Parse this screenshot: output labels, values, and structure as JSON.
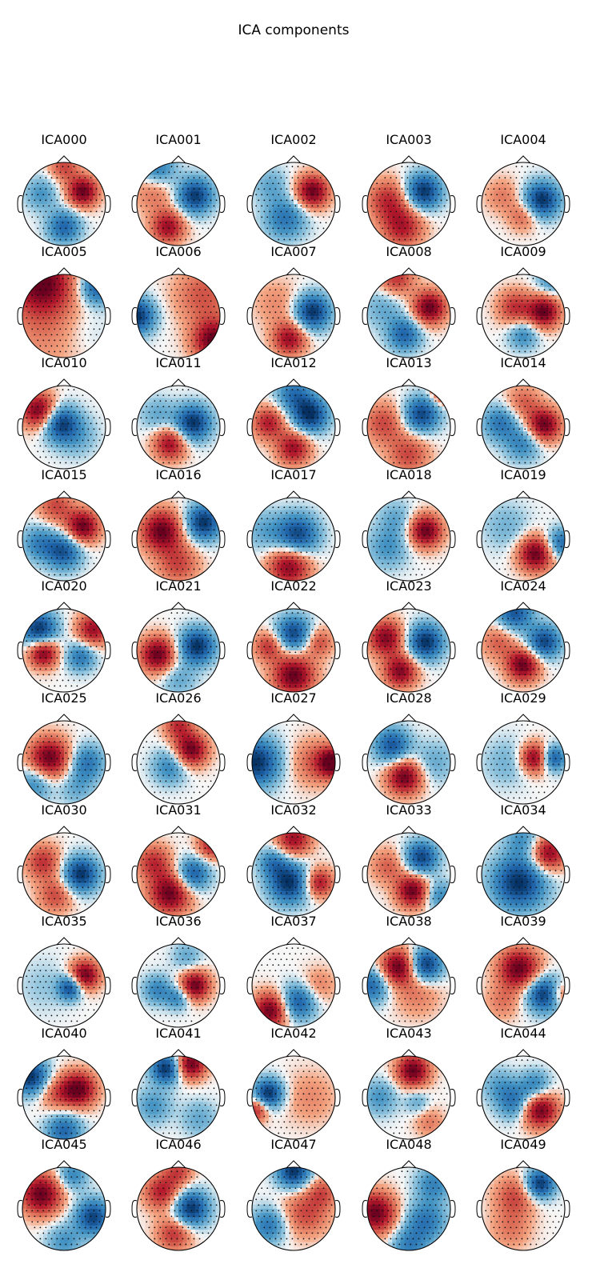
{
  "title": "ICA components",
  "components": [
    {
      "label": "ICA000",
      "blobs": [
        [
          0.45,
          -0.3,
          0.26,
          1.0
        ],
        [
          0.0,
          0.55,
          0.28,
          -0.7
        ],
        [
          -0.55,
          -0.25,
          0.28,
          -0.4
        ],
        [
          0.0,
          -0.9,
          0.25,
          0.5
        ]
      ]
    },
    {
      "label": "ICA001",
      "blobs": [
        [
          0.4,
          -0.2,
          0.3,
          -0.95
        ],
        [
          -0.25,
          0.55,
          0.28,
          0.8
        ],
        [
          -0.6,
          -0.3,
          0.35,
          0.35
        ],
        [
          -0.5,
          -0.85,
          0.3,
          -0.6
        ]
      ]
    },
    {
      "label": "ICA002",
      "blobs": [
        [
          0.45,
          -0.3,
          0.28,
          1.0
        ],
        [
          -0.2,
          0.35,
          0.35,
          -0.6
        ],
        [
          -0.55,
          -0.45,
          0.3,
          -0.3
        ]
      ]
    },
    {
      "label": "ICA003",
      "blobs": [
        [
          0.35,
          -0.3,
          0.3,
          -1.0
        ],
        [
          -0.15,
          0.55,
          0.35,
          0.7
        ],
        [
          -0.5,
          -0.1,
          0.35,
          0.6
        ]
      ]
    },
    {
      "label": "ICA004",
      "blobs": [
        [
          0.45,
          -0.1,
          0.3,
          -1.0
        ],
        [
          0.0,
          0.3,
          0.25,
          0.4
        ],
        [
          -0.5,
          -0.2,
          0.3,
          0.3
        ]
      ]
    },
    {
      "label": "ICA005",
      "blobs": [
        [
          -0.55,
          -0.85,
          0.5,
          0.9
        ],
        [
          0.8,
          -0.7,
          0.3,
          -0.8
        ],
        [
          -0.3,
          0.1,
          0.8,
          0.35
        ],
        [
          0.5,
          0.3,
          0.5,
          -0.2
        ]
      ]
    },
    {
      "label": "ICA006",
      "blobs": [
        [
          -1.0,
          0.0,
          0.3,
          -1.0
        ],
        [
          0.85,
          0.6,
          0.35,
          1.0
        ],
        [
          0.6,
          -0.5,
          0.5,
          0.45
        ]
      ]
    },
    {
      "label": "ICA007",
      "blobs": [
        [
          0.45,
          -0.1,
          0.3,
          -1.0
        ],
        [
          -0.1,
          0.55,
          0.28,
          0.8
        ],
        [
          -0.4,
          -0.3,
          0.4,
          0.25
        ]
      ]
    },
    {
      "label": "ICA008",
      "blobs": [
        [
          0.5,
          -0.2,
          0.28,
          1.0
        ],
        [
          -0.1,
          0.45,
          0.28,
          -0.7
        ],
        [
          -0.6,
          -0.2,
          0.35,
          -0.3
        ],
        [
          -0.3,
          -0.9,
          0.3,
          0.6
        ]
      ]
    },
    {
      "label": "ICA009",
      "blobs": [
        [
          0.5,
          -0.1,
          0.27,
          1.0
        ],
        [
          -0.2,
          -0.2,
          0.3,
          0.6
        ],
        [
          0.0,
          0.45,
          0.25,
          -0.5
        ],
        [
          0.7,
          -0.9,
          0.25,
          -0.5
        ]
      ]
    },
    {
      "label": "ICA010",
      "blobs": [
        [
          -0.6,
          -0.4,
          0.3,
          1.0
        ],
        [
          -0.1,
          -0.1,
          0.3,
          -0.9
        ],
        [
          0.3,
          0.2,
          0.35,
          -0.3
        ]
      ]
    },
    {
      "label": "ICA011",
      "blobs": [
        [
          0.35,
          -0.1,
          0.3,
          -1.0
        ],
        [
          -0.2,
          0.4,
          0.28,
          0.8
        ],
        [
          -0.5,
          -0.3,
          0.3,
          -0.3
        ]
      ]
    },
    {
      "label": "ICA012",
      "blobs": [
        [
          0.4,
          -0.3,
          0.3,
          -1.0
        ],
        [
          -0.6,
          -0.1,
          0.28,
          0.7
        ],
        [
          0.0,
          0.5,
          0.28,
          0.8
        ],
        [
          0.0,
          -0.8,
          0.3,
          -0.6
        ]
      ]
    },
    {
      "label": "ICA013",
      "blobs": [
        [
          0.3,
          -0.3,
          0.3,
          -0.9
        ],
        [
          -0.6,
          -0.1,
          0.35,
          0.5
        ],
        [
          0.0,
          0.65,
          0.35,
          0.5
        ],
        [
          0.85,
          -0.85,
          0.2,
          0.8
        ]
      ]
    },
    {
      "label": "ICA014",
      "blobs": [
        [
          0.5,
          -0.05,
          0.28,
          1.0
        ],
        [
          -0.55,
          -0.1,
          0.3,
          -0.6
        ],
        [
          0.0,
          0.4,
          0.3,
          -0.5
        ],
        [
          0.0,
          -0.6,
          0.3,
          0.4
        ]
      ]
    },
    {
      "label": "ICA015",
      "blobs": [
        [
          0.45,
          -0.3,
          0.28,
          1.0
        ],
        [
          0.0,
          0.3,
          0.3,
          -0.8
        ],
        [
          -0.6,
          0.1,
          0.3,
          -0.5
        ],
        [
          -0.2,
          -0.8,
          0.3,
          0.5
        ]
      ]
    },
    {
      "label": "ICA016",
      "blobs": [
        [
          -0.4,
          -0.2,
          0.35,
          1.0
        ],
        [
          0.6,
          -0.4,
          0.3,
          -1.0
        ],
        [
          0.0,
          0.6,
          0.35,
          0.5
        ]
      ]
    },
    {
      "label": "ICA017",
      "blobs": [
        [
          0.1,
          -0.1,
          0.35,
          -0.9
        ],
        [
          -0.1,
          0.65,
          0.35,
          0.9
        ],
        [
          -0.7,
          -0.2,
          0.35,
          -0.3
        ]
      ]
    },
    {
      "label": "ICA018",
      "blobs": [
        [
          0.4,
          -0.2,
          0.28,
          1.0
        ],
        [
          -0.5,
          0.2,
          0.35,
          -0.4
        ],
        [
          -0.3,
          -0.5,
          0.3,
          -0.3
        ]
      ]
    },
    {
      "label": "ICA019",
      "blobs": [
        [
          0.3,
          0.35,
          0.3,
          1.0
        ],
        [
          0.9,
          0.1,
          0.25,
          -0.7
        ],
        [
          -0.4,
          -0.3,
          0.4,
          -0.25
        ]
      ]
    },
    {
      "label": "ICA020",
      "blobs": [
        [
          -0.6,
          -0.5,
          0.3,
          -1.0
        ],
        [
          -0.5,
          0.05,
          0.25,
          1.0
        ],
        [
          0.7,
          -0.5,
          0.28,
          0.8
        ],
        [
          0.4,
          0.15,
          0.25,
          -0.6
        ]
      ]
    },
    {
      "label": "ICA021",
      "blobs": [
        [
          -0.5,
          0.1,
          0.3,
          1.0
        ],
        [
          0.45,
          -0.1,
          0.3,
          -1.0
        ],
        [
          0.0,
          0.7,
          0.3,
          -0.3
        ]
      ]
    },
    {
      "label": "ICA022",
      "blobs": [
        [
          0.0,
          0.6,
          0.35,
          1.0
        ],
        [
          0.0,
          -0.4,
          0.3,
          -0.9
        ],
        [
          -0.6,
          -0.1,
          0.25,
          0.6
        ],
        [
          0.6,
          -0.2,
          0.25,
          0.5
        ]
      ]
    },
    {
      "label": "ICA023",
      "blobs": [
        [
          0.4,
          -0.2,
          0.3,
          -1.0
        ],
        [
          -0.55,
          -0.3,
          0.3,
          0.9
        ],
        [
          -0.2,
          0.5,
          0.28,
          0.9
        ]
      ]
    },
    {
      "label": "ICA024",
      "blobs": [
        [
          0.0,
          0.35,
          0.28,
          1.0
        ],
        [
          0.5,
          -0.2,
          0.28,
          -0.9
        ],
        [
          -0.2,
          -0.9,
          0.3,
          -0.8
        ],
        [
          -0.6,
          -0.2,
          0.3,
          0.4
        ]
      ]
    },
    {
      "label": "ICA025",
      "blobs": [
        [
          -0.35,
          -0.1,
          0.35,
          1.0
        ],
        [
          0.55,
          0.0,
          0.3,
          -0.6
        ],
        [
          -0.7,
          0.5,
          0.3,
          -0.5
        ],
        [
          0.3,
          0.6,
          0.3,
          -0.3
        ]
      ]
    },
    {
      "label": "ICA026",
      "blobs": [
        [
          0.3,
          -0.3,
          0.28,
          1.0
        ],
        [
          -0.2,
          0.1,
          0.3,
          -0.5
        ],
        [
          0.0,
          -0.9,
          0.25,
          0.6
        ]
      ]
    },
    {
      "label": "ICA027",
      "blobs": [
        [
          -0.9,
          0.0,
          0.4,
          -1.0
        ],
        [
          0.95,
          0.0,
          0.25,
          1.0
        ],
        [
          0.5,
          0.0,
          0.4,
          0.4
        ]
      ]
    },
    {
      "label": "ICA028",
      "blobs": [
        [
          -0.1,
          0.35,
          0.3,
          1.0
        ],
        [
          -0.4,
          -0.4,
          0.3,
          -0.8
        ],
        [
          0.6,
          0.0,
          0.35,
          -0.3
        ]
      ]
    },
    {
      "label": "ICA029",
      "blobs": [
        [
          0.3,
          -0.1,
          0.25,
          1.0
        ],
        [
          0.7,
          -0.1,
          0.22,
          -0.9
        ],
        [
          -0.4,
          0.0,
          0.4,
          -0.25
        ]
      ]
    },
    {
      "label": "ICA030",
      "blobs": [
        [
          0.4,
          0.0,
          0.3,
          -1.0
        ],
        [
          -0.5,
          -0.3,
          0.3,
          0.6
        ],
        [
          -0.2,
          0.5,
          0.3,
          0.5
        ]
      ]
    },
    {
      "label": "ICA031",
      "blobs": [
        [
          -0.2,
          0.45,
          0.35,
          1.0
        ],
        [
          0.35,
          0.0,
          0.28,
          -0.8
        ],
        [
          0.8,
          -0.7,
          0.25,
          0.7
        ],
        [
          -0.6,
          -0.3,
          0.3,
          0.6
        ]
      ]
    },
    {
      "label": "ICA032",
      "blobs": [
        [
          -0.1,
          0.2,
          0.35,
          -1.0
        ],
        [
          0.6,
          0.2,
          0.25,
          0.8
        ],
        [
          0.0,
          -0.85,
          0.3,
          0.8
        ],
        [
          -0.5,
          -0.3,
          0.25,
          -0.5
        ]
      ]
    },
    {
      "label": "ICA033",
      "blobs": [
        [
          0.3,
          -0.4,
          0.28,
          -0.9
        ],
        [
          0.1,
          0.4,
          0.28,
          1.0
        ],
        [
          -0.5,
          -0.2,
          0.3,
          0.4
        ],
        [
          0.7,
          0.5,
          0.25,
          -0.5
        ]
      ]
    },
    {
      "label": "ICA034",
      "blobs": [
        [
          -0.1,
          0.2,
          0.45,
          -1.0
        ],
        [
          0.6,
          -0.5,
          0.3,
          0.9
        ],
        [
          0.0,
          -0.85,
          0.3,
          -0.4
        ]
      ]
    },
    {
      "label": "ICA035",
      "blobs": [
        [
          0.5,
          -0.25,
          0.25,
          1.0
        ],
        [
          0.15,
          0.05,
          0.2,
          -0.9
        ],
        [
          -0.5,
          0.0,
          0.45,
          -0.15
        ]
      ]
    },
    {
      "label": "ICA036",
      "blobs": [
        [
          0.4,
          0.0,
          0.25,
          1.0
        ],
        [
          -0.5,
          0.1,
          0.25,
          -0.5
        ],
        [
          0.0,
          0.3,
          0.2,
          -0.5
        ],
        [
          0.2,
          -0.7,
          0.25,
          -0.3
        ]
      ]
    },
    {
      "label": "ICA037",
      "blobs": [
        [
          -0.55,
          0.6,
          0.3,
          1.0
        ],
        [
          0.1,
          0.4,
          0.3,
          -0.8
        ],
        [
          0.6,
          0.0,
          0.3,
          0.3
        ]
      ]
    },
    {
      "label": "ICA038",
      "blobs": [
        [
          -0.25,
          -0.45,
          0.3,
          1.0
        ],
        [
          0.4,
          -0.5,
          0.28,
          -1.0
        ],
        [
          -0.9,
          0.0,
          0.3,
          -0.7
        ],
        [
          0.2,
          0.2,
          0.4,
          0.3
        ]
      ]
    },
    {
      "label": "ICA039",
      "blobs": [
        [
          -0.1,
          -0.4,
          0.35,
          1.0
        ],
        [
          0.5,
          0.2,
          0.3,
          -1.0
        ],
        [
          0.9,
          0.2,
          0.2,
          0.5
        ],
        [
          -0.5,
          0.4,
          0.3,
          0.3
        ]
      ]
    },
    {
      "label": "ICA040",
      "blobs": [
        [
          0.35,
          -0.2,
          0.3,
          1.0
        ],
        [
          -0.8,
          -0.5,
          0.3,
          -1.0
        ],
        [
          0.0,
          0.8,
          0.3,
          -0.7
        ],
        [
          -0.2,
          -0.1,
          0.3,
          0.4
        ]
      ]
    },
    {
      "label": "ICA041",
      "blobs": [
        [
          -0.3,
          -0.7,
          0.25,
          -1.0
        ],
        [
          0.3,
          -0.8,
          0.25,
          1.0
        ],
        [
          -0.6,
          0.2,
          0.3,
          -0.4
        ],
        [
          0.5,
          0.5,
          0.3,
          -0.3
        ]
      ]
    },
    {
      "label": "ICA042",
      "blobs": [
        [
          -0.6,
          -0.1,
          0.25,
          -1.0
        ],
        [
          -0.9,
          0.3,
          0.2,
          0.7
        ],
        [
          0.4,
          0.0,
          0.45,
          0.25
        ]
      ]
    },
    {
      "label": "ICA043",
      "blobs": [
        [
          0.1,
          -0.65,
          0.28,
          1.0
        ],
        [
          -0.7,
          0.0,
          0.3,
          -0.4
        ],
        [
          0.2,
          0.1,
          0.2,
          -0.3
        ],
        [
          0.5,
          0.6,
          0.25,
          0.3
        ]
      ]
    },
    {
      "label": "ICA044",
      "blobs": [
        [
          0.4,
          0.3,
          0.3,
          1.0
        ],
        [
          -0.2,
          0.1,
          0.3,
          -0.6
        ],
        [
          0.3,
          -0.3,
          0.25,
          -0.5
        ],
        [
          -0.6,
          -0.3,
          0.3,
          -0.3
        ]
      ]
    },
    {
      "label": "ICA045",
      "blobs": [
        [
          -0.55,
          -0.35,
          0.35,
          1.0
        ],
        [
          0.7,
          0.2,
          0.3,
          -0.9
        ],
        [
          0.0,
          0.8,
          0.3,
          -0.4
        ],
        [
          0.2,
          -0.8,
          0.25,
          -0.5
        ]
      ]
    },
    {
      "label": "ICA046",
      "blobs": [
        [
          0.3,
          0.0,
          0.3,
          -1.0
        ],
        [
          -0.4,
          -0.4,
          0.3,
          0.7
        ],
        [
          -0.1,
          0.6,
          0.3,
          0.6
        ],
        [
          0.0,
          -0.9,
          0.25,
          0.5
        ]
      ]
    },
    {
      "label": "ICA047",
      "blobs": [
        [
          0.0,
          -0.9,
          0.28,
          -1.0
        ],
        [
          0.3,
          0.1,
          0.4,
          0.5
        ],
        [
          -0.6,
          0.4,
          0.3,
          -0.6
        ],
        [
          0.7,
          -0.4,
          0.25,
          0.4
        ]
      ]
    },
    {
      "label": "ICA048",
      "blobs": [
        [
          -0.8,
          0.1,
          0.35,
          1.0
        ],
        [
          0.4,
          0.3,
          0.35,
          -0.6
        ],
        [
          0.6,
          -0.6,
          0.3,
          -0.5
        ],
        [
          0.0,
          0.9,
          0.3,
          -0.5
        ]
      ]
    },
    {
      "label": "ICA049",
      "blobs": [
        [
          0.4,
          -0.6,
          0.25,
          -1.0
        ],
        [
          -0.2,
          -0.3,
          0.35,
          0.5
        ],
        [
          -0.3,
          0.5,
          0.35,
          0.3
        ]
      ]
    }
  ]
}
